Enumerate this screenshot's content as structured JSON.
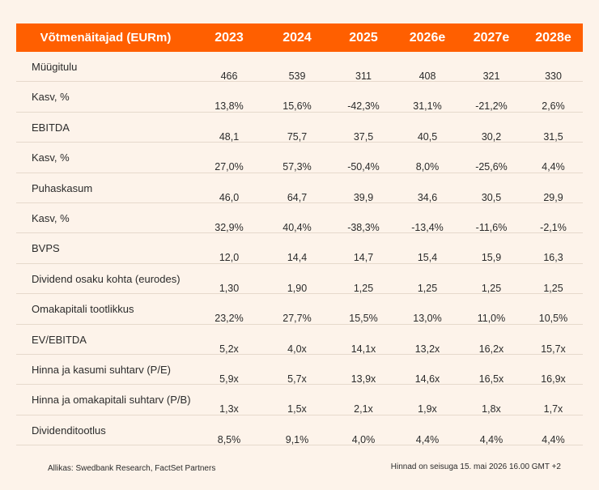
{
  "header": {
    "title": "Võtmenäitajad (EURm)",
    "years": [
      "2023",
      "2024",
      "2025",
      "2026e",
      "2027e",
      "2028e"
    ]
  },
  "rows": [
    {
      "label": "Müügitulu",
      "values": [
        "466",
        "539",
        "311",
        "408",
        "321",
        "330"
      ]
    },
    {
      "label": "Kasv, %",
      "values": [
        "13,8%",
        "15,6%",
        "-42,3%",
        "31,1%",
        "-21,2%",
        "2,6%"
      ]
    },
    {
      "label": "EBITDA",
      "values": [
        "48,1",
        "75,7",
        "37,5",
        "40,5",
        "30,2",
        "31,5"
      ]
    },
    {
      "label": "Kasv, %",
      "values": [
        "27,0%",
        "57,3%",
        "-50,4%",
        "8,0%",
        "-25,6%",
        "4,4%"
      ]
    },
    {
      "label": "Puhaskasum",
      "values": [
        "46,0",
        "64,7",
        "39,9",
        "34,6",
        "30,5",
        "29,9"
      ]
    },
    {
      "label": "Kasv, %",
      "values": [
        "32,9%",
        "40,4%",
        "-38,3%",
        "-13,4%",
        "-11,6%",
        "-2,1%"
      ]
    },
    {
      "label": "BVPS",
      "values": [
        "12,0",
        "14,4",
        "14,7",
        "15,4",
        "15,9",
        "16,3"
      ]
    },
    {
      "label": "Dividend osaku kohta (eurodes)",
      "values": [
        "1,30",
        "1,90",
        "1,25",
        "1,25",
        "1,25",
        "1,25"
      ]
    },
    {
      "label": "Omakapitali tootlikkus",
      "values": [
        "23,2%",
        "27,7%",
        "15,5%",
        "13,0%",
        "11,0%",
        "10,5%"
      ]
    },
    {
      "label": "EV/EBITDA",
      "values": [
        "5,2x",
        "4,0x",
        "14,1x",
        "13,2x",
        "16,2x",
        "15,7x"
      ]
    },
    {
      "label": "Hinna ja kasumi suhtarv (P/E)",
      "values": [
        "5,9x",
        "5,7x",
        "13,9x",
        "14,6x",
        "16,5x",
        "16,9x"
      ]
    },
    {
      "label": "Hinna ja omakapitali suhtarv (P/B)",
      "values": [
        "1,3x",
        "1,5x",
        "2,1x",
        "1,9x",
        "1,8x",
        "1,7x"
      ]
    },
    {
      "label": "Dividenditootlus",
      "values": [
        "8,5%",
        "9,1%",
        "4,0%",
        "4,4%",
        "4,4%",
        "4,4%"
      ]
    }
  ],
  "footer": {
    "source": "Allikas: Swedbank Research, FactSet Partners",
    "prices": "Hinnad on seisuga 15. mai 2026 16.00 GMT +2"
  },
  "colors": {
    "header_bg": "#ff5f00",
    "page_bg": "#fdf3ea",
    "divider": "#e6d9cc"
  }
}
